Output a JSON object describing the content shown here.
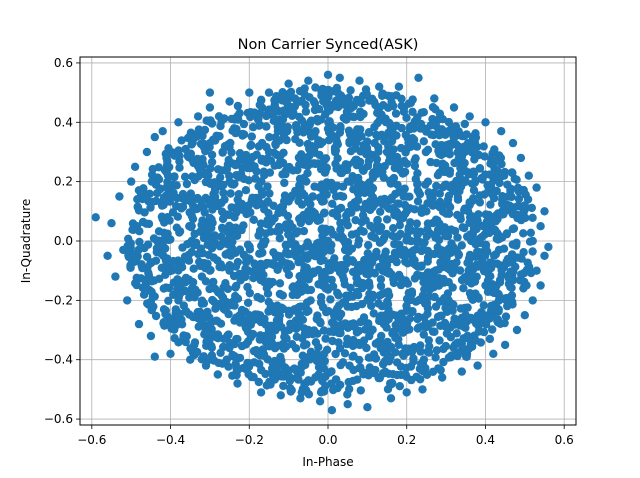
{
  "chart_data": {
    "type": "scatter",
    "title": "Non Carrier Synced(ASK)",
    "xlabel": "In-Phase",
    "ylabel": "In-Quadrature",
    "xlim": [
      -0.63,
      0.63
    ],
    "ylim": [
      -0.62,
      0.62
    ],
    "xticks": [
      -0.6,
      -0.4,
      -0.2,
      0.0,
      0.2,
      0.4,
      0.6
    ],
    "yticks": [
      -0.6,
      -0.4,
      -0.2,
      0.0,
      0.2,
      0.4,
      0.6
    ],
    "xtick_labels": [
      "−0.6",
      "−0.4",
      "−0.2",
      "0.0",
      "0.2",
      "0.4",
      "0.6"
    ],
    "ytick_labels": [
      "−0.6",
      "−0.4",
      "−0.2",
      "0.0",
      "0.2",
      "0.4",
      "0.6"
    ],
    "grid": true,
    "marker_color": "#1f77b4",
    "series": [
      {
        "points": [
          [
            -0.59,
            0.08
          ],
          [
            -0.55,
            0.06
          ],
          [
            -0.56,
            -0.05
          ],
          [
            -0.54,
            -0.12
          ],
          [
            -0.53,
            0.15
          ],
          [
            -0.51,
            -0.2
          ],
          [
            -0.5,
            0.2
          ],
          [
            -0.52,
            -0.03
          ],
          [
            -0.49,
            0.25
          ],
          [
            -0.48,
            -0.28
          ],
          [
            -0.46,
            0.3
          ],
          [
            -0.45,
            -0.32
          ],
          [
            -0.44,
            -0.39
          ],
          [
            -0.44,
            0.35
          ],
          [
            -0.42,
            0.37
          ],
          [
            -0.4,
            -0.38
          ],
          [
            -0.38,
            0.4
          ],
          [
            -0.35,
            -0.4
          ],
          [
            -0.33,
            0.42
          ],
          [
            -0.31,
            -0.42
          ],
          [
            -0.3,
            0.45
          ],
          [
            -0.3,
            0.5
          ],
          [
            -0.28,
            -0.45
          ],
          [
            -0.25,
            0.47
          ],
          [
            -0.23,
            -0.48
          ],
          [
            -0.2,
            0.5
          ],
          [
            -0.17,
            -0.51
          ],
          [
            -0.15,
            0.5
          ],
          [
            -0.12,
            -0.52
          ],
          [
            -0.1,
            0.53
          ],
          [
            -0.07,
            -0.53
          ],
          [
            -0.05,
            0.54
          ],
          [
            -0.02,
            -0.54
          ],
          [
            0.0,
            0.56
          ],
          [
            0.01,
            -0.57
          ],
          [
            0.03,
            0.55
          ],
          [
            0.05,
            -0.55
          ],
          [
            0.08,
            0.54
          ],
          [
            0.1,
            -0.56
          ],
          [
            0.13,
            0.52
          ],
          [
            0.16,
            -0.53
          ],
          [
            0.18,
            0.52
          ],
          [
            0.2,
            -0.51
          ],
          [
            0.23,
            0.55
          ],
          [
            0.24,
            -0.5
          ],
          [
            0.27,
            0.48
          ],
          [
            0.29,
            -0.46
          ],
          [
            0.32,
            0.45
          ],
          [
            0.34,
            -0.44
          ],
          [
            0.36,
            0.42
          ],
          [
            0.38,
            -0.42
          ],
          [
            0.4,
            0.4
          ],
          [
            0.42,
            -0.38
          ],
          [
            0.44,
            0.37
          ],
          [
            0.45,
            -0.35
          ],
          [
            0.47,
            0.33
          ],
          [
            0.48,
            -0.3
          ],
          [
            0.49,
            0.28
          ],
          [
            0.5,
            -0.25
          ],
          [
            0.51,
            0.22
          ],
          [
            0.52,
            -0.2
          ],
          [
            0.53,
            0.18
          ],
          [
            0.54,
            -0.15
          ],
          [
            0.55,
            0.1
          ],
          [
            0.55,
            -0.05
          ],
          [
            0.56,
            -0.02
          ],
          [
            0.54,
            0.05
          ],
          [
            0.53,
            -0.1
          ],
          [
            0.5,
            0.12
          ],
          [
            0.52,
            0.0
          ],
          [
            -0.35,
            0.05
          ],
          [
            -0.3,
            -0.1
          ],
          [
            -0.25,
            0.2
          ],
          [
            -0.2,
            -0.25
          ],
          [
            -0.15,
            0.3
          ],
          [
            -0.1,
            -0.3
          ],
          [
            -0.05,
            0.1
          ],
          [
            0.0,
            -0.1
          ],
          [
            0.05,
            0.2
          ],
          [
            0.1,
            -0.2
          ],
          [
            0.15,
            0.3
          ],
          [
            0.2,
            -0.3
          ],
          [
            0.25,
            0.1
          ],
          [
            0.3,
            -0.05
          ],
          [
            0.35,
            0.2
          ],
          [
            0.4,
            -0.15
          ],
          [
            -0.4,
            0.15
          ],
          [
            -0.38,
            -0.2
          ],
          [
            0.38,
            0.05
          ],
          [
            0.0,
            0.0
          ]
        ]
      }
    ]
  }
}
